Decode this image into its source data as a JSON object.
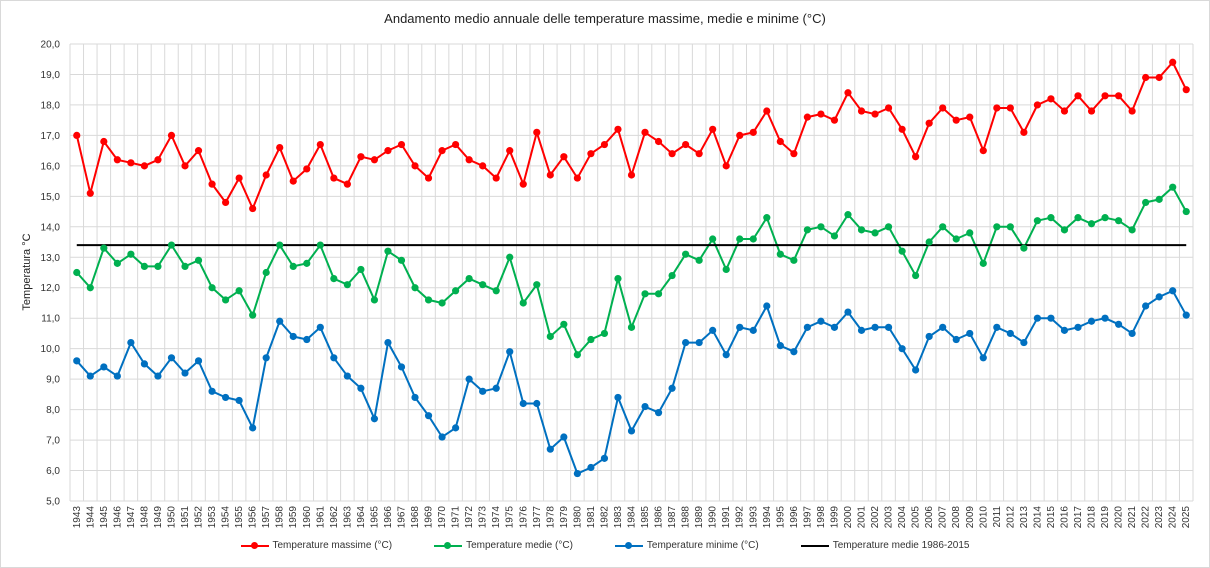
{
  "chart_data": {
    "type": "line",
    "title": "Andamento medio annuale delle temperature massime, medie e minime (°C)",
    "ylabel": "Temperatura °C",
    "xlabel": "",
    "ylim": [
      5,
      20
    ],
    "ytick_step": 1,
    "ytick_labels": [
      "5,0",
      "6,0",
      "7,0",
      "8,0",
      "9,0",
      "10,0",
      "11,0",
      "12,0",
      "13,0",
      "14,0",
      "15,0",
      "16,0",
      "17,0",
      "18,0",
      "19,0",
      "20,0"
    ],
    "grid": true,
    "legend_position": "bottom",
    "x": [
      1943,
      1944,
      1945,
      1946,
      1947,
      1948,
      1949,
      1950,
      1951,
      1952,
      1953,
      1954,
      1955,
      1956,
      1957,
      1958,
      1959,
      1960,
      1961,
      1962,
      1963,
      1964,
      1965,
      1966,
      1967,
      1968,
      1969,
      1970,
      1971,
      1972,
      1973,
      1974,
      1975,
      1976,
      1977,
      1978,
      1979,
      1980,
      1981,
      1982,
      1983,
      1984,
      1985,
      1986,
      1987,
      1988,
      1989,
      1990,
      1991,
      1992,
      1993,
      1994,
      1995,
      1996,
      1997,
      1998,
      1999,
      2000,
      2001,
      2002,
      2003,
      2004,
      2005,
      2006,
      2007,
      2008,
      2009,
      2010,
      2011,
      2012,
      2013,
      2014,
      2015,
      2016,
      2017,
      2018,
      2019,
      2020,
      2021,
      2022,
      2023,
      2024,
      2025
    ],
    "series": [
      {
        "name": "Temperature massime (°C)",
        "color": "#ff0000",
        "values": [
          17.0,
          15.1,
          16.8,
          16.2,
          16.1,
          16.0,
          16.2,
          17.0,
          16.0,
          16.5,
          15.4,
          14.8,
          15.6,
          14.6,
          15.7,
          16.6,
          15.5,
          15.9,
          16.7,
          15.6,
          15.4,
          16.3,
          16.2,
          16.5,
          16.7,
          16.0,
          15.6,
          16.5,
          16.7,
          16.2,
          16.0,
          15.6,
          16.5,
          15.4,
          17.1,
          15.7,
          16.3,
          15.6,
          16.4,
          16.7,
          17.2,
          15.7,
          17.1,
          16.8,
          16.4,
          16.7,
          16.4,
          17.2,
          16.0,
          17.0,
          17.1,
          17.8,
          16.8,
          16.4,
          17.6,
          17.7,
          17.5,
          18.4,
          17.8,
          17.7,
          17.9,
          17.2,
          16.3,
          17.4,
          17.9,
          17.5,
          17.6,
          16.5,
          17.9,
          17.9,
          17.1,
          18.0,
          18.2,
          17.8,
          18.3,
          17.8,
          18.3,
          18.3,
          17.8,
          18.9,
          18.9,
          19.4,
          18.5
        ]
      },
      {
        "name": "Temperature medie (°C)",
        "color": "#00b050",
        "values": [
          12.5,
          12.0,
          13.3,
          12.8,
          13.1,
          12.7,
          12.7,
          13.4,
          12.7,
          12.9,
          12.0,
          11.6,
          11.9,
          11.1,
          12.5,
          13.4,
          12.7,
          12.8,
          13.4,
          12.3,
          12.1,
          12.6,
          11.6,
          13.2,
          12.9,
          12.0,
          11.6,
          11.5,
          11.9,
          12.3,
          12.1,
          11.9,
          13.0,
          11.5,
          12.1,
          10.4,
          10.8,
          9.8,
          10.3,
          10.5,
          12.3,
          10.7,
          11.8,
          11.8,
          12.4,
          13.1,
          12.9,
          13.6,
          12.6,
          13.6,
          13.6,
          14.3,
          13.1,
          12.9,
          13.9,
          14.0,
          13.7,
          14.4,
          13.9,
          13.8,
          14.0,
          13.2,
          12.4,
          13.5,
          14.0,
          13.6,
          13.8,
          12.8,
          14.0,
          14.0,
          13.3,
          14.2,
          14.3,
          13.9,
          14.3,
          14.1,
          14.3,
          14.2,
          13.9,
          14.8,
          14.9,
          15.3,
          14.5
        ]
      },
      {
        "name": "Temperature minime (°C)",
        "color": "#0070c0",
        "values": [
          9.6,
          9.1,
          9.4,
          9.1,
          10.2,
          9.5,
          9.1,
          9.7,
          9.2,
          9.6,
          8.6,
          8.4,
          8.3,
          7.4,
          9.7,
          10.9,
          10.4,
          10.3,
          10.7,
          9.7,
          9.1,
          8.7,
          7.7,
          10.2,
          9.4,
          8.4,
          7.8,
          7.1,
          7.4,
          9.0,
          8.6,
          8.7,
          9.9,
          8.2,
          8.2,
          6.7,
          7.1,
          5.9,
          6.1,
          6.4,
          8.4,
          7.3,
          8.1,
          7.9,
          8.7,
          10.2,
          10.2,
          10.6,
          9.8,
          10.7,
          10.6,
          11.4,
          10.1,
          9.9,
          10.7,
          10.9,
          10.7,
          11.2,
          10.6,
          10.7,
          10.7,
          10.0,
          9.3,
          10.4,
          10.7,
          10.3,
          10.5,
          9.7,
          10.7,
          10.5,
          10.2,
          11.0,
          11.0,
          10.6,
          10.7,
          10.9,
          11.0,
          10.8,
          10.5,
          11.4,
          11.7,
          11.9,
          11.1
        ]
      },
      {
        "name": "Temperature medie 1986-2015",
        "color": "#000000",
        "reference_value": 13.4
      }
    ]
  }
}
